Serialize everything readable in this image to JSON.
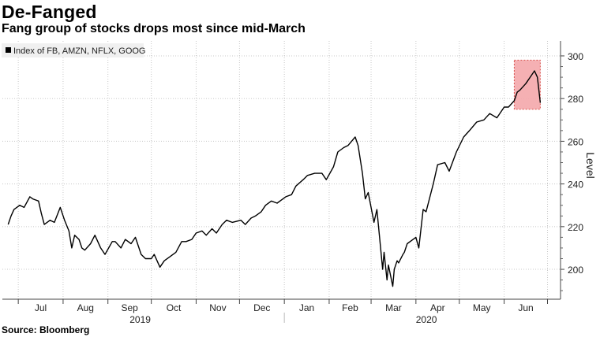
{
  "chart_data": {
    "type": "line",
    "title": "De-Fanged",
    "subtitle": "Fang group of stocks drops most since mid-March",
    "source": "Source: Bloomberg",
    "ylabel": "Level",
    "ylim": [
      186,
      307
    ],
    "yticks": [
      200,
      220,
      240,
      260,
      280,
      300
    ],
    "month_ticks": [
      "Jul",
      "Aug",
      "Sep",
      "Oct",
      "Nov",
      "Dec",
      "Jan",
      "Feb",
      "Mar",
      "Apr",
      "May",
      "Jun"
    ],
    "year_labels": [
      "2019",
      "2020"
    ],
    "legend": "Index of FB, AMZN, NFLX, GOOG",
    "highlight": {
      "x_range": [
        "2020-06-08",
        "2020-06-26"
      ],
      "y_range": [
        275,
        298
      ]
    },
    "grid": true,
    "series": [
      {
        "name": "Index of FB, AMZN, NFLX, GOOG",
        "x": [
          "2019-06-24",
          "2019-06-26",
          "2019-06-28",
          "2019-07-02",
          "2019-07-05",
          "2019-07-09",
          "2019-07-11",
          "2019-07-15",
          "2019-07-17",
          "2019-07-19",
          "2019-07-23",
          "2019-07-26",
          "2019-07-30",
          "2019-08-02",
          "2019-08-05",
          "2019-08-07",
          "2019-08-09",
          "2019-08-12",
          "2019-08-14",
          "2019-08-16",
          "2019-08-20",
          "2019-08-23",
          "2019-08-27",
          "2019-08-30",
          "2019-09-04",
          "2019-09-06",
          "2019-09-10",
          "2019-09-13",
          "2019-09-17",
          "2019-09-20",
          "2019-09-24",
          "2019-09-27",
          "2019-10-01",
          "2019-10-03",
          "2019-10-07",
          "2019-10-10",
          "2019-10-14",
          "2019-10-18",
          "2019-10-22",
          "2019-10-25",
          "2019-10-29",
          "2019-11-01",
          "2019-11-05",
          "2019-11-08",
          "2019-11-12",
          "2019-11-15",
          "2019-11-19",
          "2019-11-22",
          "2019-11-26",
          "2019-12-02",
          "2019-12-05",
          "2019-12-09",
          "2019-12-12",
          "2019-12-16",
          "2019-12-19",
          "2019-12-23",
          "2019-12-27",
          "2020-01-02",
          "2020-01-06",
          "2020-01-09",
          "2020-01-14",
          "2020-01-17",
          "2020-01-22",
          "2020-01-27",
          "2020-01-30",
          "2020-02-04",
          "2020-02-07",
          "2020-02-11",
          "2020-02-14",
          "2020-02-19",
          "2020-02-21",
          "2020-02-24",
          "2020-02-26",
          "2020-02-28",
          "2020-03-03",
          "2020-03-05",
          "2020-03-09",
          "2020-03-10",
          "2020-03-12",
          "2020-03-13",
          "2020-03-16",
          "2020-03-17",
          "2020-03-19",
          "2020-03-20",
          "2020-03-23",
          "2020-03-24",
          "2020-03-26",
          "2020-03-30",
          "2020-04-01",
          "2020-04-03",
          "2020-04-06",
          "2020-04-08",
          "2020-04-13",
          "2020-04-16",
          "2020-04-21",
          "2020-04-24",
          "2020-04-29",
          "2020-05-04",
          "2020-05-08",
          "2020-05-13",
          "2020-05-18",
          "2020-05-22",
          "2020-05-27",
          "2020-06-01",
          "2020-06-04",
          "2020-06-08",
          "2020-06-10",
          "2020-06-12",
          "2020-06-16",
          "2020-06-19",
          "2020-06-22",
          "2020-06-24",
          "2020-06-26"
        ],
        "y": [
          221,
          225,
          228,
          230,
          229,
          234,
          233,
          232,
          226,
          221,
          223,
          222,
          229,
          223,
          218,
          210,
          216,
          214,
          210,
          209,
          212,
          216,
          210,
          207,
          213,
          213,
          210,
          214,
          212,
          215,
          207,
          205,
          205,
          207,
          201,
          204,
          206,
          208,
          213,
          213,
          214,
          217,
          218,
          216,
          219,
          217,
          221,
          223,
          222,
          223,
          221,
          224,
          225,
          227,
          230,
          232,
          231,
          234,
          235,
          239,
          242,
          244,
          245,
          245,
          242,
          248,
          255,
          257,
          258,
          262,
          258,
          245,
          233,
          236,
          222,
          228,
          200,
          208,
          195,
          202,
          192,
          200,
          204,
          203,
          207,
          208,
          212,
          214,
          215,
          210,
          228,
          227,
          240,
          249,
          250,
          246,
          255,
          262,
          265,
          269,
          270,
          273,
          271,
          276,
          276,
          279,
          283,
          284,
          287,
          290,
          293,
          290,
          278
        ]
      }
    ]
  }
}
